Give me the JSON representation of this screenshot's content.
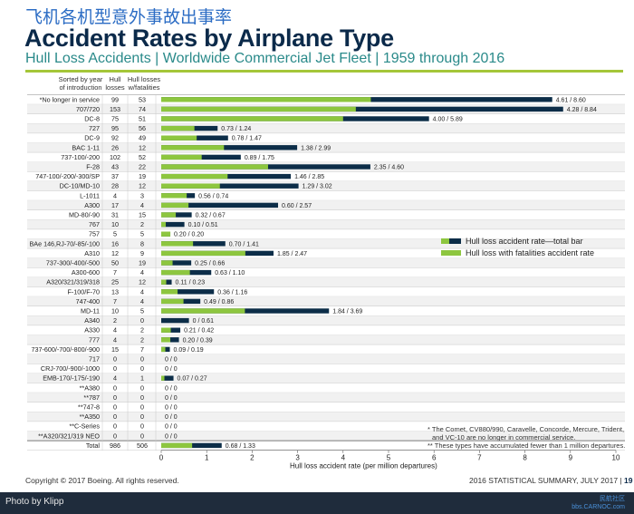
{
  "header": {
    "cn_title": "飞机各机型意外事故出事率",
    "title": "Accident Rates by Airplane Type",
    "subtitle": "Hull Loss Accidents | Worldwide Commercial Jet Fleet | 1959 through 2016"
  },
  "columns": {
    "sorted_line1": "Sorted by year",
    "sorted_line2": "of introduction",
    "hull_line1": "Hull",
    "hull_line2": "losses",
    "fatal_line1": "Hull losses",
    "fatal_line2": "w/fatalities"
  },
  "colors": {
    "total_bar": "#0c2d48",
    "fatal_bar": "#8dc63f",
    "row_even": "#ffffff",
    "row_odd": "#f1f1f1"
  },
  "chart_data": {
    "type": "bar",
    "orientation": "horizontal",
    "xlabel": "Hull loss accident rate (per million departures)",
    "xlim": [
      0,
      10
    ],
    "xticks": [
      "0",
      "1",
      "2",
      "3",
      "4",
      "5",
      "6",
      "7",
      "8",
      "9",
      "10"
    ],
    "legend": {
      "placement": "right",
      "total": "Hull loss accident rate—total bar",
      "fatal": "Hull loss with fatalities accident rate"
    },
    "rows": [
      {
        "type": "*No longer in service",
        "hull": "99",
        "fatal": "53",
        "rf": 4.61,
        "rt": 8.6,
        "label": "4.61 / 8.60"
      },
      {
        "type": "707/720",
        "hull": "153",
        "fatal": "74",
        "rf": 4.28,
        "rt": 8.84,
        "label": "4.28 / 8.84"
      },
      {
        "type": "DC-8",
        "hull": "75",
        "fatal": "51",
        "rf": 4.0,
        "rt": 5.89,
        "label": "4.00 / 5.89"
      },
      {
        "type": "727",
        "hull": "95",
        "fatal": "56",
        "rf": 0.73,
        "rt": 1.24,
        "label": "0.73 / 1.24"
      },
      {
        "type": "DC-9",
        "hull": "92",
        "fatal": "49",
        "rf": 0.78,
        "rt": 1.47,
        "label": "0.78 / 1.47"
      },
      {
        "type": "BAC 1-11",
        "hull": "26",
        "fatal": "12",
        "rf": 1.38,
        "rt": 2.99,
        "label": "1.38 / 2.99"
      },
      {
        "type": "737-100/-200",
        "hull": "102",
        "fatal": "52",
        "rf": 0.89,
        "rt": 1.75,
        "label": "0.89 / 1.75"
      },
      {
        "type": "F-28",
        "hull": "43",
        "fatal": "22",
        "rf": 2.35,
        "rt": 4.6,
        "label": "2.35 / 4.60"
      },
      {
        "type": "747-100/-200/-300/SP",
        "hull": "37",
        "fatal": "19",
        "rf": 1.46,
        "rt": 2.85,
        "label": "1.46 / 2.85"
      },
      {
        "type": "DC-10/MD-10",
        "hull": "28",
        "fatal": "12",
        "rf": 1.29,
        "rt": 3.02,
        "label": "1.29 / 3.02"
      },
      {
        "type": "L-1011",
        "hull": "4",
        "fatal": "3",
        "rf": 0.56,
        "rt": 0.74,
        "label": "0.56 / 0.74"
      },
      {
        "type": "A300",
        "hull": "17",
        "fatal": "4",
        "rf": 0.6,
        "rt": 2.57,
        "label": "0.60 / 2.57"
      },
      {
        "type": "MD-80/-90",
        "hull": "31",
        "fatal": "15",
        "rf": 0.32,
        "rt": 0.67,
        "label": "0.32 / 0.67"
      },
      {
        "type": "767",
        "hull": "10",
        "fatal": "2",
        "rf": 0.1,
        "rt": 0.51,
        "label": "0.10 / 0.51"
      },
      {
        "type": "757",
        "hull": "5",
        "fatal": "5",
        "rf": 0.2,
        "rt": 0.2,
        "label": "0.20 / 0.20"
      },
      {
        "type": "BAe 146,RJ-70/-85/-100",
        "hull": "16",
        "fatal": "8",
        "rf": 0.7,
        "rt": 1.41,
        "label": "0.70 / 1.41"
      },
      {
        "type": "A310",
        "hull": "12",
        "fatal": "9",
        "rf": 1.85,
        "rt": 2.47,
        "label": "1.85 / 2.47"
      },
      {
        "type": "737-300/-400/-500",
        "hull": "50",
        "fatal": "19",
        "rf": 0.25,
        "rt": 0.66,
        "label": "0.25 / 0.66"
      },
      {
        "type": "A300-600",
        "hull": "7",
        "fatal": "4",
        "rf": 0.63,
        "rt": 1.1,
        "label": "0.63 / 1.10"
      },
      {
        "type": "A320/321/319/318",
        "hull": "25",
        "fatal": "12",
        "rf": 0.11,
        "rt": 0.23,
        "label": "0.11 / 0.23"
      },
      {
        "type": "F-100/F-70",
        "hull": "13",
        "fatal": "4",
        "rf": 0.36,
        "rt": 1.16,
        "label": "0.36 / 1.16"
      },
      {
        "type": "747-400",
        "hull": "7",
        "fatal": "4",
        "rf": 0.49,
        "rt": 0.86,
        "label": "0.49 / 0.86"
      },
      {
        "type": "MD-11",
        "hull": "10",
        "fatal": "5",
        "rf": 1.84,
        "rt": 3.69,
        "label": "1.84 / 3.69"
      },
      {
        "type": "A340",
        "hull": "2",
        "fatal": "0",
        "rf": 0,
        "rt": 0.61,
        "label": "0 / 0.61"
      },
      {
        "type": "A330",
        "hull": "4",
        "fatal": "2",
        "rf": 0.21,
        "rt": 0.42,
        "label": "0.21 / 0.42"
      },
      {
        "type": "777",
        "hull": "4",
        "fatal": "2",
        "rf": 0.2,
        "rt": 0.39,
        "label": "0.20 / 0.39"
      },
      {
        "type": "737-600/-700/-800/-900",
        "hull": "15",
        "fatal": "7",
        "rf": 0.09,
        "rt": 0.19,
        "label": "0.09 / 0.19"
      },
      {
        "type": "717",
        "hull": "0",
        "fatal": "0",
        "rf": 0,
        "rt": 0,
        "label": "0 / 0"
      },
      {
        "type": "CRJ-700/-900/-1000",
        "hull": "0",
        "fatal": "0",
        "rf": 0,
        "rt": 0,
        "label": "0 / 0"
      },
      {
        "type": "EMB-170/-175/-190",
        "hull": "4",
        "fatal": "1",
        "rf": 0.07,
        "rt": 0.27,
        "label": "0.07 / 0.27"
      },
      {
        "type": "**A380",
        "hull": "0",
        "fatal": "0",
        "rf": 0,
        "rt": 0,
        "label": "0 / 0"
      },
      {
        "type": "**787",
        "hull": "0",
        "fatal": "0",
        "rf": 0,
        "rt": 0,
        "label": "0 / 0"
      },
      {
        "type": "**747-8",
        "hull": "0",
        "fatal": "0",
        "rf": 0,
        "rt": 0,
        "label": "0 / 0"
      },
      {
        "type": "**A350",
        "hull": "0",
        "fatal": "0",
        "rf": 0,
        "rt": 0,
        "label": "0 / 0"
      },
      {
        "type": "**C-Series",
        "hull": "0",
        "fatal": "0",
        "rf": 0,
        "rt": 0,
        "label": "0 / 0"
      },
      {
        "type": "**A320/321/319 NEO",
        "hull": "0",
        "fatal": "0",
        "rf": 0,
        "rt": 0,
        "label": "0 / 0"
      }
    ],
    "total": {
      "type": "Total",
      "hull": "986",
      "fatal": "506",
      "rf": 0.68,
      "rt": 1.33,
      "label": "0.68 / 1.33"
    }
  },
  "footnotes": {
    "line1": "* The Comet, CV880/990, Caravelle, Concorde, Mercure, Trident,",
    "line2": "and VC-10 are no longer in commercial service.",
    "line3": "** These types have accumulated fewer than 1 million departures."
  },
  "footer": {
    "copyright": "Copyright © 2017 Boeing. All rights reserved.",
    "summary": "2016 STATISTICAL SUMMARY, JULY 2017 |",
    "page": "19",
    "credit": "Photo by Klipp",
    "watermark_cn": "民航社区",
    "watermark": "bbs.CARNOC.com"
  }
}
